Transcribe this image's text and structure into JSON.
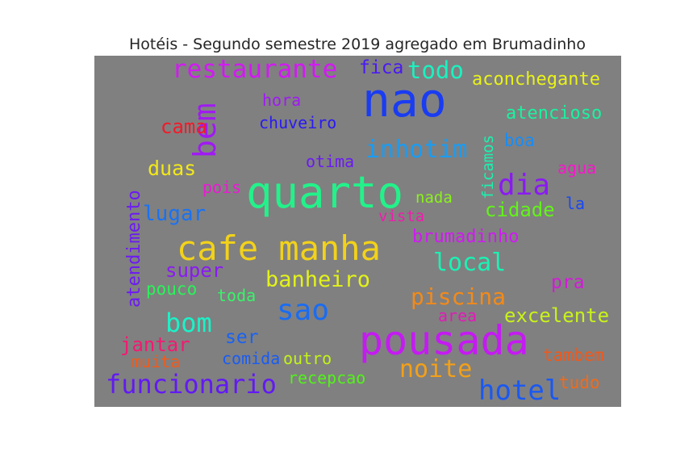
{
  "chart_data": {
    "type": "wordcloud",
    "title": "Hotéis - Segundo semestre 2019 agregado em Brumadinho",
    "background": "#808080",
    "words": [
      {
        "text": "nao",
        "color": "#1a3cf2"
      },
      {
        "text": "quarto",
        "color": "#22f28a"
      },
      {
        "text": "cafe manha",
        "color": "#f2d21a"
      },
      {
        "text": "pousada",
        "color": "#c51af2"
      },
      {
        "text": "restaurante",
        "color": "#d21af2"
      },
      {
        "text": "bem",
        "color": "#a01af2"
      },
      {
        "text": "inhotim",
        "color": "#1a9cf2"
      },
      {
        "text": "dia",
        "color": "#8a1af2"
      },
      {
        "text": "sao",
        "color": "#1a6cf2"
      },
      {
        "text": "funcionario",
        "color": "#621af2"
      },
      {
        "text": "hotel",
        "color": "#1a58f2"
      },
      {
        "text": "bom",
        "color": "#1af2c8"
      },
      {
        "text": "local",
        "color": "#1af2b4"
      },
      {
        "text": "noite",
        "color": "#f2a01a"
      },
      {
        "text": "banheiro",
        "color": "#e2f21a"
      },
      {
        "text": "piscina",
        "color": "#f28a1a"
      },
      {
        "text": "todo",
        "color": "#1af2c0"
      },
      {
        "text": "fica",
        "color": "#4a1af2"
      },
      {
        "text": "aconchegante",
        "color": "#e8f21a"
      },
      {
        "text": "atencioso",
        "color": "#1af2a0"
      },
      {
        "text": "cidade",
        "color": "#62f21a"
      },
      {
        "text": "lugar",
        "color": "#1a72f2"
      },
      {
        "text": "duas",
        "color": "#f2e81a"
      },
      {
        "text": "atendimento",
        "color": "#6c1af2"
      },
      {
        "text": "super",
        "color": "#8a1af2"
      },
      {
        "text": "cama",
        "color": "#f21a2a"
      },
      {
        "text": "hora",
        "color": "#a01af2"
      },
      {
        "text": "chuveiro",
        "color": "#2a1af2"
      },
      {
        "text": "otima",
        "color": "#6a1af2"
      },
      {
        "text": "boa",
        "color": "#1a8cf2"
      },
      {
        "text": "agua",
        "color": "#f21ac8"
      },
      {
        "text": "ficamos",
        "color": "#1af2b0"
      },
      {
        "text": "pois",
        "color": "#e81ad2"
      },
      {
        "text": "nada",
        "color": "#8af21a"
      },
      {
        "text": "vista",
        "color": "#f21ab0"
      },
      {
        "text": "la",
        "color": "#1a48f2"
      },
      {
        "text": "brumadinho",
        "color": "#d01af2"
      },
      {
        "text": "pra",
        "color": "#d21ad8"
      },
      {
        "text": "pouco",
        "color": "#2af25a"
      },
      {
        "text": "toda",
        "color": "#3af26a"
      },
      {
        "text": "area",
        "color": "#e21ab8"
      },
      {
        "text": "excelente",
        "color": "#c8f21a"
      },
      {
        "text": "ser",
        "color": "#1a62f2"
      },
      {
        "text": "jantar",
        "color": "#f21a72"
      },
      {
        "text": "muita",
        "color": "#f25a1a"
      },
      {
        "text": "comida",
        "color": "#1a5cf2"
      },
      {
        "text": "outro",
        "color": "#c2f21a"
      },
      {
        "text": "recepcao",
        "color": "#52f21a"
      },
      {
        "text": "tambem",
        "color": "#f2581a"
      },
      {
        "text": "tudo",
        "color": "#f26a1a"
      }
    ]
  }
}
